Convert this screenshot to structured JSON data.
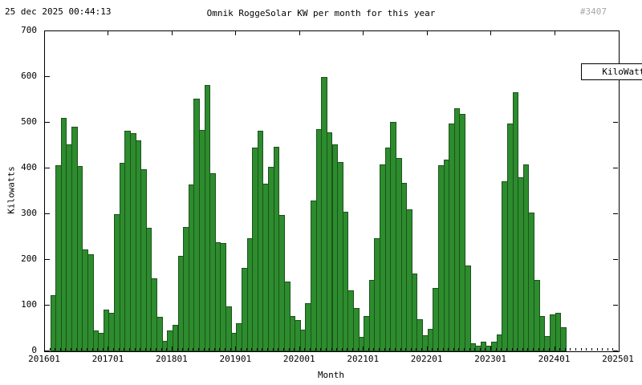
{
  "header": {
    "datetime": "25 dec 2025 00:44:13",
    "title": "Omnik RoggeSolar KW per month for this year",
    "counter": "#3407"
  },
  "legend": {
    "label": "KiloWatts"
  },
  "axes": {
    "y_label": "Kilowatts",
    "x_label": "Month",
    "y_ticks": [
      0,
      100,
      200,
      300,
      400,
      500,
      600,
      700
    ],
    "x_ticks": [
      "201601",
      "201701",
      "201801",
      "201901",
      "202001",
      "202101",
      "202201",
      "202301",
      "202401",
      "202501"
    ]
  },
  "colors": {
    "bar_fill": "#2d8c2d",
    "bar_border": "#1d521d",
    "counter_text": "#a8a8a8",
    "axis": "#000000"
  },
  "chart_data": {
    "type": "bar",
    "title": "Omnik RoggeSolar KW per month for this year",
    "xlabel": "Month",
    "ylabel": "Kilowatts",
    "ylim": [
      0,
      700
    ],
    "x_range": [
      "201601",
      "202501"
    ],
    "grid": false,
    "legend_position": "top-right",
    "months": [
      "201602",
      "201603",
      "201604",
      "201605",
      "201606",
      "201607",
      "201608",
      "201609",
      "201610",
      "201611",
      "201612",
      "201701",
      "201702",
      "201703",
      "201704",
      "201705",
      "201706",
      "201707",
      "201708",
      "201709",
      "201710",
      "201711",
      "201712",
      "201801",
      "201802",
      "201803",
      "201804",
      "201805",
      "201806",
      "201807",
      "201808",
      "201809",
      "201810",
      "201811",
      "201812",
      "201901",
      "201902",
      "201903",
      "201904",
      "201905",
      "201906",
      "201907",
      "201908",
      "201909",
      "201910",
      "201911",
      "201912",
      "202001",
      "202002",
      "202003",
      "202004",
      "202005",
      "202006",
      "202007",
      "202008",
      "202009",
      "202010",
      "202011",
      "202012",
      "202101",
      "202102",
      "202103",
      "202104",
      "202105",
      "202106",
      "202107",
      "202108",
      "202109",
      "202110",
      "202111",
      "202112",
      "202201",
      "202202",
      "202203",
      "202204",
      "202205",
      "202206",
      "202207",
      "202208",
      "202209",
      "202210",
      "202211",
      "202212",
      "202301",
      "202302",
      "202303",
      "202304",
      "202305",
      "202306",
      "202307",
      "202308",
      "202309",
      "202310",
      "202311",
      "202312",
      "202401",
      "202402"
    ],
    "values": [
      122,
      407,
      510,
      453,
      492,
      406,
      222,
      212,
      45,
      41,
      91,
      84,
      300,
      413,
      483,
      478,
      462,
      398,
      270,
      160,
      76,
      22,
      45,
      58,
      208,
      272,
      365,
      553,
      485,
      582,
      390,
      239,
      236,
      98,
      40,
      62,
      182,
      248,
      445,
      482,
      366,
      403,
      447,
      298,
      153,
      78,
      68,
      47,
      106,
      329,
      486,
      600,
      479,
      452,
      414,
      306,
      133,
      95,
      31,
      77,
      156,
      248,
      409,
      446,
      501,
      423,
      369,
      310,
      171,
      71,
      35,
      49,
      138,
      407,
      420,
      499,
      532,
      520,
      188,
      18,
      12,
      21,
      13,
      21,
      36,
      372,
      499,
      567,
      380,
      408,
      304,
      157,
      77,
      33,
      81,
      84,
      53
    ]
  }
}
